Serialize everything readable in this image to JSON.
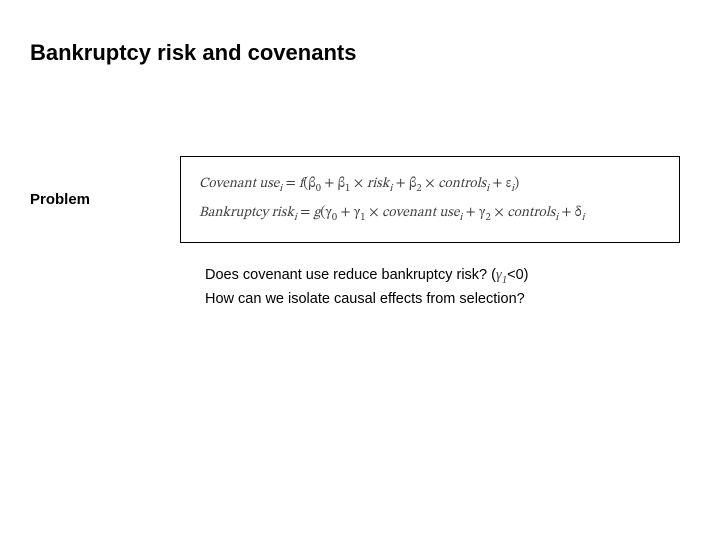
{
  "title": "Bankruptcy risk and covenants",
  "problem_label": "Problem",
  "equations": {
    "line1": {
      "lhs_it": "Covenant use",
      "lhs_sub": "i",
      "f": "f",
      "b0": "β",
      "b0_sub": "0",
      "b1": "β",
      "b1_sub": "1",
      "risk": "risk",
      "risk_sub": "i",
      "b2": "β",
      "b2_sub": "2",
      "controls": "controls",
      "controls_sub": "i",
      "eps": "ε",
      "eps_sub": "i"
    },
    "line2": {
      "lhs_it": "Bankruptcy risk",
      "lhs_sub": "i",
      "g": "g",
      "g0": "γ",
      "g0_sub": "0",
      "g1": "γ",
      "g1_sub": "1",
      "cov": "covenant use",
      "cov_sub": "i",
      "g2": "γ",
      "g2_sub": "2",
      "controls": "controls",
      "controls_sub": "i",
      "delta": "δ",
      "delta_sub": "i"
    }
  },
  "questions": {
    "q1_pre": "Does covenant use reduce bankruptcy risk? (",
    "q1_gamma": "γ",
    "q1_gamma_sub": "1",
    "q1_post": "<0)",
    "q2": "How can we isolate causal effects from selection?"
  },
  "colors": {
    "text": "#000000",
    "math": "#3f3f3f",
    "border": "#000000",
    "background": "#ffffff"
  },
  "fonts": {
    "body": "Arial",
    "math": "Cambria Math"
  }
}
